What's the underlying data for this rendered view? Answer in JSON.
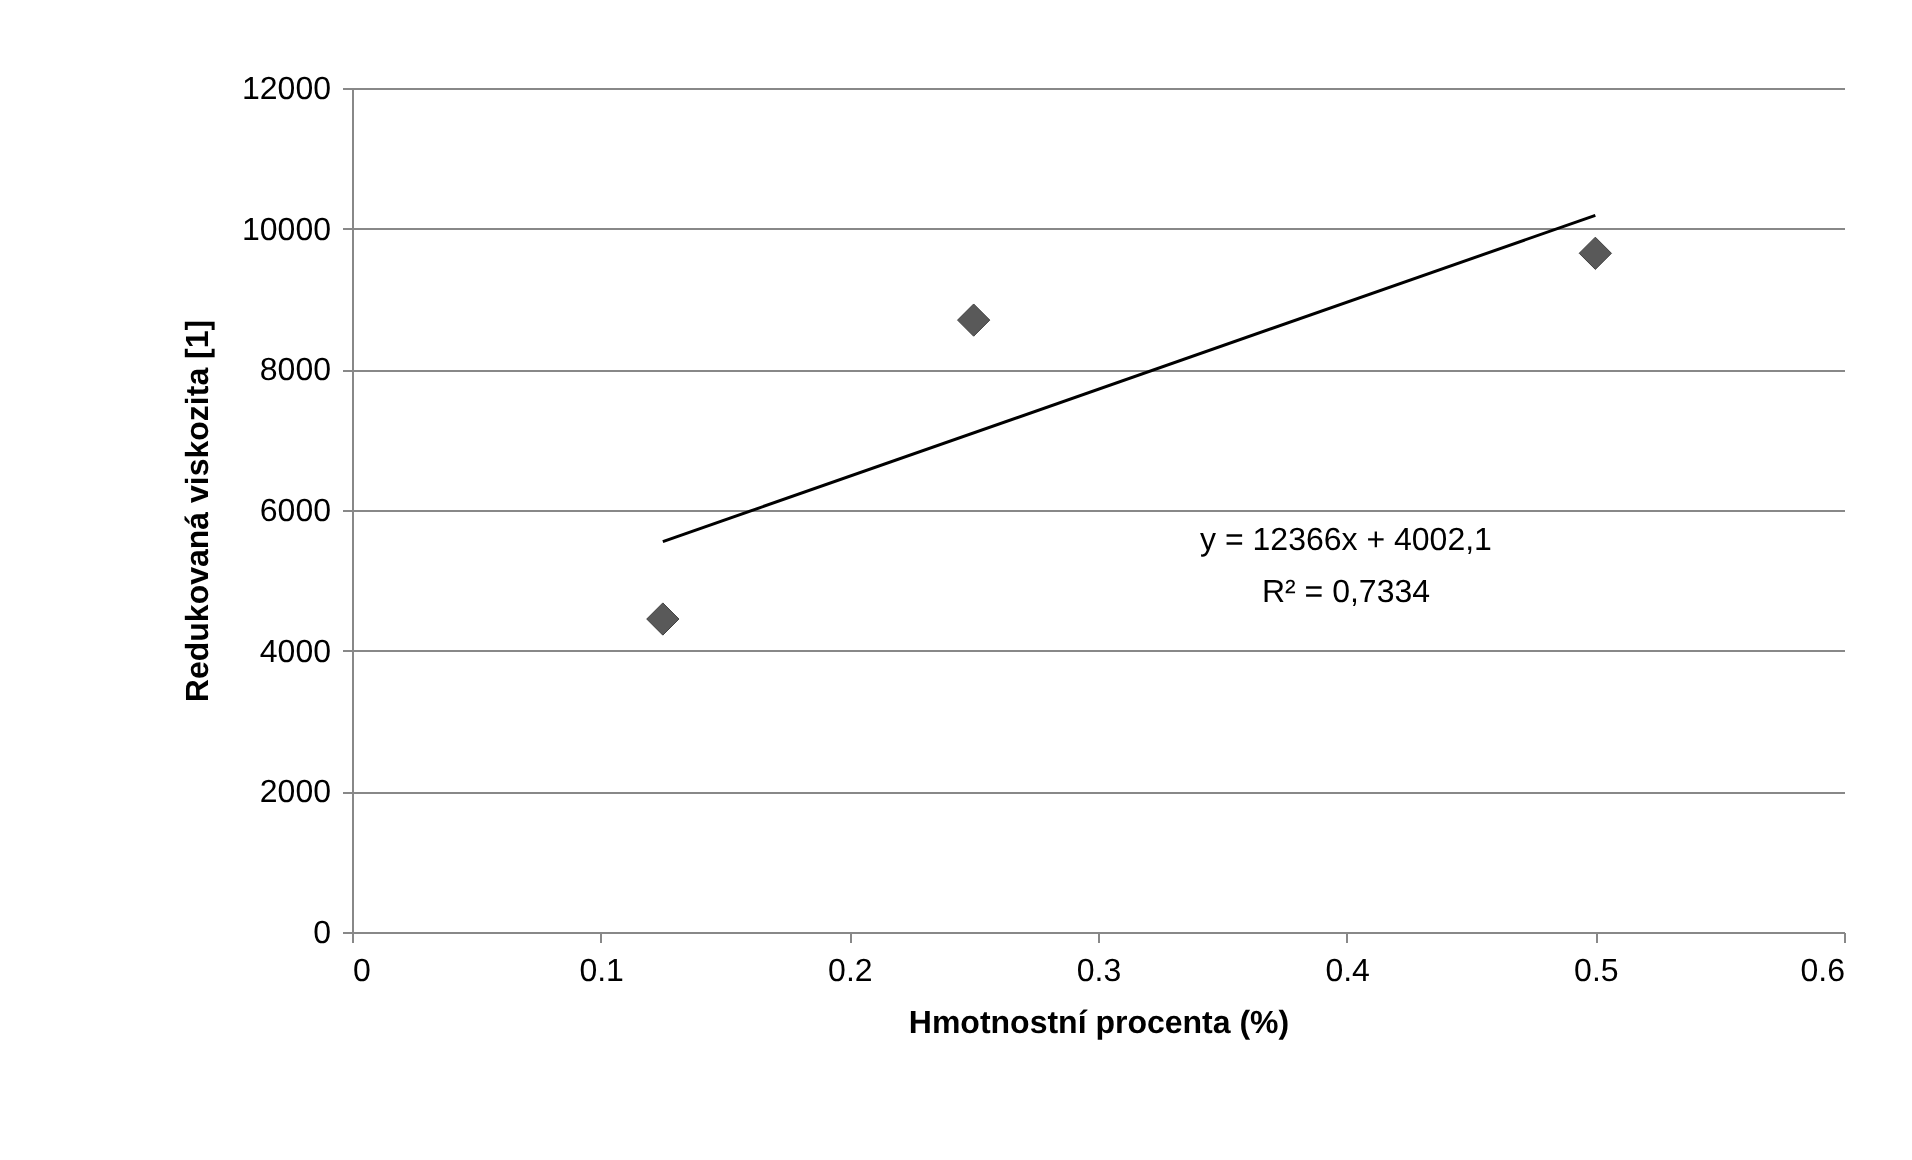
{
  "chart_data": {
    "type": "scatter",
    "xlabel": "Hmotnostní procenta (%)",
    "ylabel": "Redukovaná viskozita [1]",
    "x": [
      0.125,
      0.25,
      0.5
    ],
    "series": [
      {
        "color": "#595959",
        "marker": "diamond",
        "values": [
          4450,
          8700,
          9650
        ]
      },
      {
        "type": "line",
        "color": "#000000",
        "x": [
          0.125,
          0.5
        ],
        "values": [
          5550,
          10190
        ]
      }
    ],
    "xlim": [
      0,
      0.6
    ],
    "xticks": [
      0,
      0.1,
      0.2,
      0.3,
      0.4,
      0.5,
      0.6
    ],
    "ylim": [
      0,
      12000
    ],
    "yticks": [
      0,
      2000,
      4000,
      6000,
      8000,
      10000,
      12000
    ],
    "grid": "y",
    "annotations": [
      "y = 12366x + 4002,1",
      "R² = 0,7334"
    ]
  }
}
